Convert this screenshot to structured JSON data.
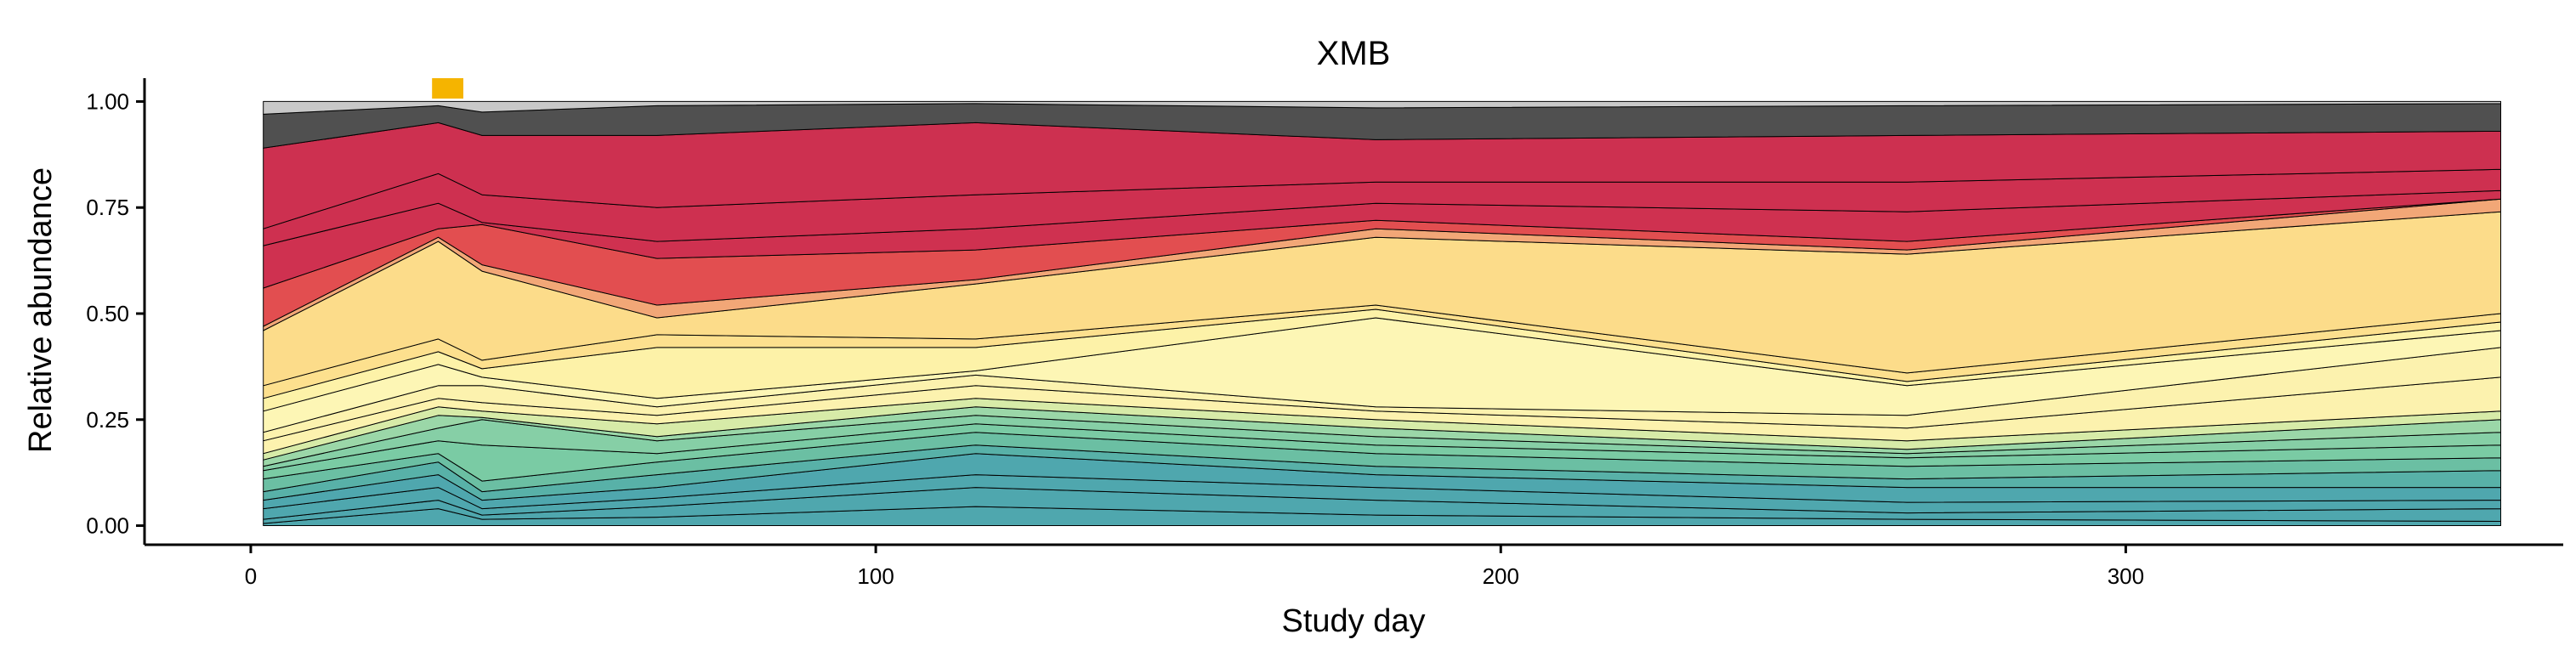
{
  "chart_data": {
    "type": "area",
    "title": "XMB",
    "xlabel": "Study day",
    "ylabel": "Relative abundance",
    "xlim": [
      -17,
      370
    ],
    "ylim": [
      -0.045,
      1.055
    ],
    "x_ticks": [
      0,
      100,
      200,
      300
    ],
    "x_tick_labels": [
      "0",
      "100",
      "200",
      "300"
    ],
    "y_ticks": [
      0.0,
      0.25,
      0.5,
      0.75,
      1.0
    ],
    "y_tick_labels": [
      "0.00",
      "0.25",
      "0.50",
      "0.75",
      "1.00"
    ],
    "grid": false,
    "legend": "none",
    "x": [
      2,
      30,
      37,
      65,
      116,
      180,
      265,
      360
    ],
    "highlight_interval": {
      "x": [
        29,
        34
      ],
      "color": "#F5B400"
    },
    "boundaries": [
      {
        "y": [
          0.005,
          0.04,
          0.015,
          0.02,
          0.045,
          0.025,
          0.015,
          0.01
        ],
        "color": "#4FA7AE"
      },
      {
        "y": [
          0.015,
          0.06,
          0.025,
          0.045,
          0.09,
          0.06,
          0.03,
          0.04
        ],
        "color": "#4FA7AE"
      },
      {
        "y": [
          0.04,
          0.09,
          0.04,
          0.065,
          0.12,
          0.09,
          0.055,
          0.06
        ],
        "color": "#4FA7AE"
      },
      {
        "y": [
          0.06,
          0.12,
          0.06,
          0.09,
          0.17,
          0.12,
          0.09,
          0.09
        ],
        "color": "#4FA7AE"
      },
      {
        "y": [
          0.08,
          0.15,
          0.08,
          0.12,
          0.19,
          0.14,
          0.11,
          0.13
        ],
        "color": "#58B1A8"
      },
      {
        "y": [
          0.11,
          0.17,
          0.105,
          0.15,
          0.22,
          0.17,
          0.14,
          0.16
        ],
        "color": "#6BBFA3"
      },
      {
        "y": [
          0.13,
          0.2,
          0.19,
          0.17,
          0.24,
          0.19,
          0.16,
          0.19
        ],
        "color": "#7ACBA4"
      },
      {
        "y": [
          0.14,
          0.23,
          0.25,
          0.2,
          0.26,
          0.21,
          0.17,
          0.22
        ],
        "color": "#86CFA6"
      },
      {
        "y": [
          0.155,
          0.26,
          0.255,
          0.21,
          0.28,
          0.23,
          0.18,
          0.25
        ],
        "color": "#9BD7A8"
      },
      {
        "y": [
          0.17,
          0.28,
          0.27,
          0.24,
          0.3,
          0.25,
          0.2,
          0.27
        ],
        "color": "#D7EBA8"
      },
      {
        "y": [
          0.2,
          0.3,
          0.29,
          0.26,
          0.33,
          0.27,
          0.23,
          0.35
        ],
        "color": "#FCF2AE"
      },
      {
        "y": [
          0.22,
          0.33,
          0.33,
          0.28,
          0.355,
          0.28,
          0.26,
          0.42
        ],
        "color": "#FCF2AE"
      },
      {
        "y": [
          0.27,
          0.38,
          0.35,
          0.3,
          0.365,
          0.49,
          0.33,
          0.46
        ],
        "color": "#FDF6B5"
      },
      {
        "y": [
          0.3,
          0.41,
          0.37,
          0.42,
          0.42,
          0.51,
          0.34,
          0.48
        ],
        "color": "#FDF2A8"
      },
      {
        "y": [
          0.33,
          0.44,
          0.39,
          0.45,
          0.44,
          0.52,
          0.36,
          0.5
        ],
        "color": "#FDE08E"
      },
      {
        "y": [
          0.46,
          0.67,
          0.6,
          0.49,
          0.57,
          0.68,
          0.64,
          0.74
        ],
        "color": "#FCDC8A"
      },
      {
        "y": [
          0.47,
          0.68,
          0.615,
          0.52,
          0.58,
          0.7,
          0.65,
          0.77
        ],
        "color": "#F2A777"
      },
      {
        "y": [
          0.56,
          0.7,
          0.71,
          0.63,
          0.65,
          0.72,
          0.67,
          0.77
        ],
        "color": "#E24E50"
      },
      {
        "y": [
          0.66,
          0.76,
          0.715,
          0.67,
          0.7,
          0.76,
          0.74,
          0.79
        ],
        "color": "#CF3150"
      },
      {
        "y": [
          0.7,
          0.83,
          0.78,
          0.75,
          0.78,
          0.81,
          0.81,
          0.84
        ],
        "color": "#CE3050"
      },
      {
        "y": [
          0.89,
          0.95,
          0.92,
          0.92,
          0.95,
          0.91,
          0.92,
          0.93
        ],
        "color": "#CD3050"
      },
      {
        "y": [
          0.97,
          0.99,
          0.975,
          0.99,
          0.995,
          0.985,
          0.99,
          0.995
        ],
        "color": "#505050"
      },
      {
        "y": [
          1.0,
          1.0,
          1.0,
          1.0,
          1.0,
          1.0,
          1.0,
          1.0
        ],
        "color": "#C8C8C8"
      }
    ]
  }
}
